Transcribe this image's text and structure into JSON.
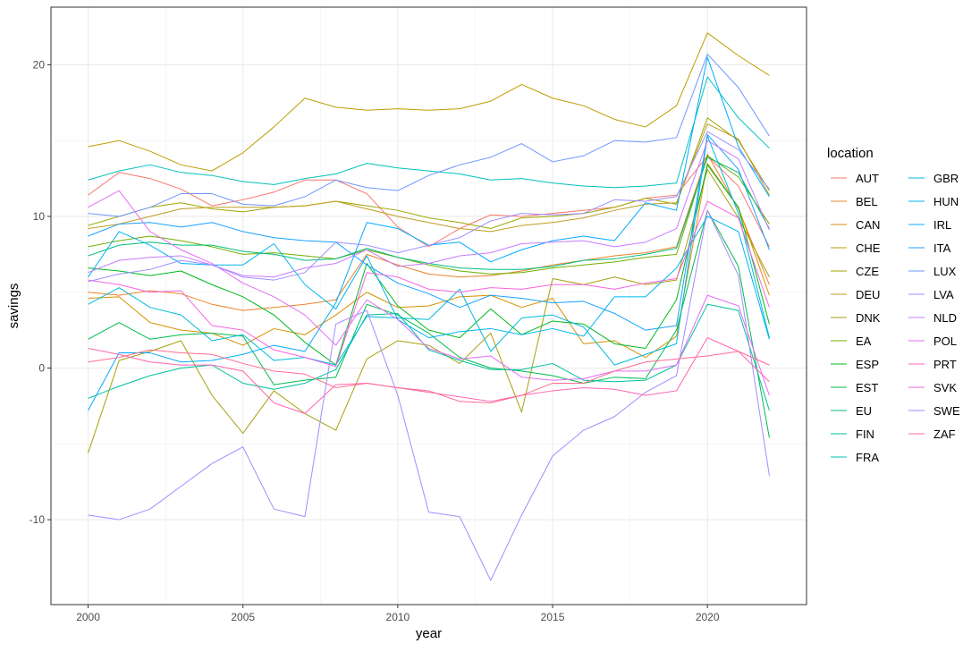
{
  "chart_data": {
    "type": "line",
    "xlabel": "year",
    "ylabel": "savings",
    "xlim": [
      1998.8,
      2023.2
    ],
    "ylim": [
      -15.6,
      23.8
    ],
    "x_ticks": [
      2000,
      2005,
      2010,
      2015,
      2020
    ],
    "y_ticks": [
      -10,
      0,
      10,
      20
    ],
    "x_tick_labels": [
      "2000",
      "2005",
      "2010",
      "2015",
      "2020"
    ],
    "y_tick_labels": [
      "-10",
      "0",
      "10",
      "20"
    ],
    "grid": true,
    "legend_title": "location",
    "legend_position": "right",
    "x": [
      2000,
      2001,
      2002,
      2003,
      2004,
      2005,
      2006,
      2007,
      2008,
      2009,
      2010,
      2011,
      2012,
      2013,
      2014,
      2015,
      2016,
      2017,
      2018,
      2019,
      2020,
      2021,
      2022
    ],
    "series": [
      {
        "name": "AUT",
        "color": "#F8766D",
        "values": [
          11.4,
          12.9,
          12.5,
          11.8,
          10.7,
          11.1,
          11.6,
          12.4,
          12.4,
          11.5,
          9.3,
          8.0,
          9.2,
          10.1,
          10.0,
          10.2,
          10.4,
          10.6,
          11.2,
          11.4,
          14.0,
          12.0,
          8.0
        ]
      },
      {
        "name": "BEL",
        "color": "#E9842C",
        "values": [
          5.0,
          4.8,
          5.1,
          4.9,
          4.2,
          3.8,
          4.0,
          4.2,
          4.5,
          7.5,
          6.8,
          6.2,
          6.0,
          6.1,
          6.4,
          6.8,
          7.1,
          7.4,
          7.6,
          8.0,
          14.1,
          10.5,
          5.5
        ]
      },
      {
        "name": "CAN",
        "color": "#D69100",
        "values": [
          4.6,
          4.7,
          3.0,
          2.5,
          2.3,
          1.5,
          2.6,
          2.2,
          3.5,
          5.0,
          4.0,
          4.1,
          4.7,
          4.8,
          4.0,
          4.6,
          1.6,
          1.8,
          0.7,
          2.1,
          13.5,
          10.6,
          4.8
        ]
      },
      {
        "name": "CHE",
        "color": "#BC9D00",
        "values": [
          14.6,
          15.0,
          14.3,
          13.4,
          13.0,
          14.2,
          15.9,
          17.8,
          17.2,
          17.0,
          17.1,
          17.0,
          17.1,
          17.6,
          18.7,
          17.8,
          17.3,
          16.4,
          15.9,
          17.3,
          22.1,
          20.6,
          19.3
        ]
      },
      {
        "name": "CZE",
        "color": "#9CA700",
        "values": [
          9.4,
          10.0,
          10.6,
          10.9,
          10.5,
          10.3,
          10.6,
          10.7,
          11.0,
          10.7,
          10.4,
          9.9,
          9.6,
          9.2,
          9.9,
          10.0,
          10.2,
          10.6,
          11.2,
          10.8,
          16.5,
          15.0,
          11.7
        ]
      },
      {
        "name": "DEU",
        "color": "#C09B20",
        "values": [
          9.2,
          9.5,
          10.0,
          10.5,
          10.6,
          10.6,
          10.6,
          10.7,
          11.0,
          10.5,
          10.0,
          9.6,
          9.2,
          9.0,
          9.4,
          9.6,
          9.9,
          10.4,
          10.8,
          10.9,
          16.1,
          15.1,
          11.4
        ]
      },
      {
        "name": "DNK",
        "color": "#A6A00C",
        "values": [
          -5.6,
          0.5,
          1.1,
          1.8,
          -1.8,
          -4.3,
          -1.5,
          -3.0,
          -4.1,
          0.6,
          1.8,
          1.5,
          0.3,
          2.3,
          -2.9,
          5.9,
          5.5,
          6.0,
          5.5,
          5.8,
          13.1,
          9.9,
          6.0
        ]
      },
      {
        "name": "EA",
        "color": "#6FB000",
        "values": [
          8.0,
          8.4,
          8.7,
          8.4,
          8.0,
          7.5,
          7.6,
          7.4,
          7.2,
          7.8,
          7.3,
          6.8,
          6.4,
          6.2,
          6.3,
          6.6,
          6.8,
          7.0,
          7.3,
          7.5,
          14.0,
          12.6,
          9.5
        ]
      },
      {
        "name": "ESP",
        "color": "#00B81F",
        "values": [
          6.6,
          6.4,
          6.1,
          6.4,
          5.5,
          4.7,
          3.5,
          1.7,
          0.2,
          6.9,
          4.1,
          2.5,
          2.0,
          3.9,
          2.2,
          3.1,
          2.9,
          1.6,
          1.3,
          4.5,
          13.4,
          10.6,
          2.9
        ]
      },
      {
        "name": "EST",
        "color": "#00BB4E",
        "values": [
          1.9,
          3.0,
          1.9,
          2.2,
          2.3,
          2.1,
          -1.1,
          -0.8,
          -0.6,
          4.2,
          3.5,
          2.3,
          0.7,
          0.0,
          -0.2,
          -0.5,
          -1.0,
          -0.6,
          -0.7,
          2.5,
          10.4,
          6.7,
          -4.6
        ]
      },
      {
        "name": "EU",
        "color": "#00BD78",
        "values": [
          7.4,
          8.1,
          8.3,
          8.1,
          8.1,
          7.7,
          7.5,
          7.1,
          7.2,
          7.9,
          7.3,
          6.9,
          6.6,
          6.5,
          6.5,
          6.7,
          7.1,
          7.2,
          7.5,
          7.9,
          13.9,
          12.9,
          9.2
        ]
      },
      {
        "name": "FIN",
        "color": "#00BF9D",
        "values": [
          -2.0,
          -1.2,
          -0.5,
          0.0,
          0.2,
          -1.0,
          -1.4,
          -1.0,
          -0.1,
          3.5,
          3.6,
          1.2,
          0.5,
          -0.1,
          -0.1,
          0.3,
          -0.8,
          -0.9,
          -0.8,
          0.2,
          4.2,
          3.8,
          -2.8
        ]
      },
      {
        "name": "FRA",
        "color": "#00C0BD",
        "values": [
          12.4,
          13.0,
          13.4,
          12.9,
          12.7,
          12.3,
          12.1,
          12.5,
          12.8,
          13.5,
          13.2,
          13.0,
          12.8,
          12.4,
          12.5,
          12.2,
          12.0,
          11.9,
          12.0,
          12.2,
          19.2,
          16.5,
          14.5
        ]
      },
      {
        "name": "GBR",
        "color": "#00BBDB",
        "values": [
          4.2,
          5.3,
          4.0,
          3.5,
          1.8,
          2.2,
          0.5,
          0.7,
          0.2,
          3.4,
          3.3,
          3.2,
          5.2,
          1.1,
          3.3,
          3.5,
          2.7,
          0.2,
          0.9,
          1.6,
          15.3,
          10.2,
          2.0
        ]
      },
      {
        "name": "HUN",
        "color": "#00B5EF",
        "values": [
          6.0,
          9.0,
          8.1,
          6.9,
          6.8,
          6.8,
          8.2,
          5.5,
          3.9,
          7.4,
          3.2,
          2.0,
          2.4,
          2.6,
          2.2,
          2.6,
          2.1,
          4.7,
          4.7,
          6.6,
          10.0,
          9.0,
          1.9
        ]
      },
      {
        "name": "IRL",
        "color": "#00ABFD",
        "values": [
          -2.8,
          1.0,
          1.0,
          0.4,
          0.5,
          0.9,
          1.5,
          1.1,
          4.3,
          9.6,
          9.2,
          8.1,
          8.3,
          7.0,
          7.8,
          8.4,
          8.7,
          8.4,
          10.9,
          10.4,
          20.5,
          14.6,
          11.3
        ]
      },
      {
        "name": "ITA",
        "color": "#19A1FF",
        "values": [
          8.7,
          9.5,
          9.6,
          9.3,
          9.6,
          9.0,
          8.6,
          8.4,
          8.3,
          6.8,
          5.6,
          4.9,
          4.0,
          4.8,
          4.6,
          4.3,
          4.4,
          3.6,
          2.5,
          2.8,
          15.4,
          13.1,
          7.8
        ]
      },
      {
        "name": "LUX",
        "color": "#6E96FF",
        "values": [
          10.2,
          10.0,
          10.6,
          11.5,
          11.5,
          10.8,
          10.7,
          11.3,
          12.4,
          11.9,
          11.7,
          12.7,
          13.4,
          13.9,
          14.8,
          13.6,
          14.0,
          15.0,
          14.9,
          15.2,
          20.7,
          18.5,
          15.3
        ]
      },
      {
        "name": "LVA",
        "color": "#A58AFF",
        "values": [
          -9.7,
          -10.0,
          -9.3,
          -7.8,
          -6.3,
          -5.2,
          -9.3,
          -9.8,
          2.9,
          3.8,
          -1.8,
          -9.5,
          -9.8,
          -14.0,
          -9.7,
          -5.8,
          -4.1,
          -3.2,
          -1.6,
          -0.5,
          10.4,
          6.1,
          -7.1
        ]
      },
      {
        "name": "NLD",
        "color": "#C77CFF",
        "values": [
          6.3,
          7.1,
          7.3,
          7.4,
          6.8,
          6.1,
          6.0,
          6.6,
          6.9,
          7.8,
          6.7,
          6.9,
          7.4,
          7.6,
          8.2,
          8.3,
          8.4,
          8.0,
          8.3,
          9.2,
          15.0,
          13.8,
          9.1
        ]
      },
      {
        "name": "POL",
        "color": "#E36EF6",
        "values": [
          10.6,
          11.7,
          9.0,
          7.8,
          6.9,
          5.6,
          4.7,
          3.5,
          1.5,
          4.5,
          3.2,
          1.3,
          0.6,
          0.8,
          -0.6,
          -0.8,
          -0.7,
          -0.2,
          -0.2,
          0.2,
          4.8,
          4.1,
          -1.8
        ]
      },
      {
        "name": "PRT",
        "color": "#FF64B0",
        "values": [
          1.3,
          0.9,
          0.4,
          0.2,
          0.2,
          -0.2,
          -2.3,
          -3.0,
          -1.1,
          -1.0,
          -1.3,
          -1.6,
          -1.9,
          -2.2,
          -1.8,
          -1.5,
          -1.3,
          -1.4,
          -1.8,
          -1.5,
          2.0,
          1.1,
          -0.9
        ]
      },
      {
        "name": "SVK",
        "color": "#F664E0",
        "values": [
          5.8,
          5.5,
          5.0,
          5.1,
          2.8,
          2.5,
          1.2,
          0.7,
          0.1,
          6.3,
          6.0,
          5.2,
          5.0,
          5.3,
          5.2,
          5.5,
          5.5,
          5.2,
          5.6,
          5.9,
          11.0,
          9.9,
          4.0
        ]
      },
      {
        "name": "SWE",
        "color": "#9C8DFF",
        "values": [
          5.7,
          6.2,
          6.5,
          7.1,
          6.8,
          6.0,
          5.8,
          6.3,
          8.3,
          8.1,
          7.6,
          8.1,
          8.6,
          9.7,
          10.2,
          10.1,
          10.2,
          11.1,
          11.0,
          11.3,
          15.6,
          14.4,
          11.8
        ]
      },
      {
        "name": "ZAF",
        "color": "#FF6C91",
        "values": [
          0.4,
          0.7,
          1.2,
          1.0,
          0.9,
          0.3,
          -0.2,
          -0.4,
          -1.3,
          -1.0,
          -1.3,
          -1.5,
          -2.2,
          -2.3,
          -1.8,
          -1.0,
          -1.0,
          -0.2,
          0.4,
          0.6,
          0.8,
          1.1,
          0.2
        ]
      }
    ]
  }
}
